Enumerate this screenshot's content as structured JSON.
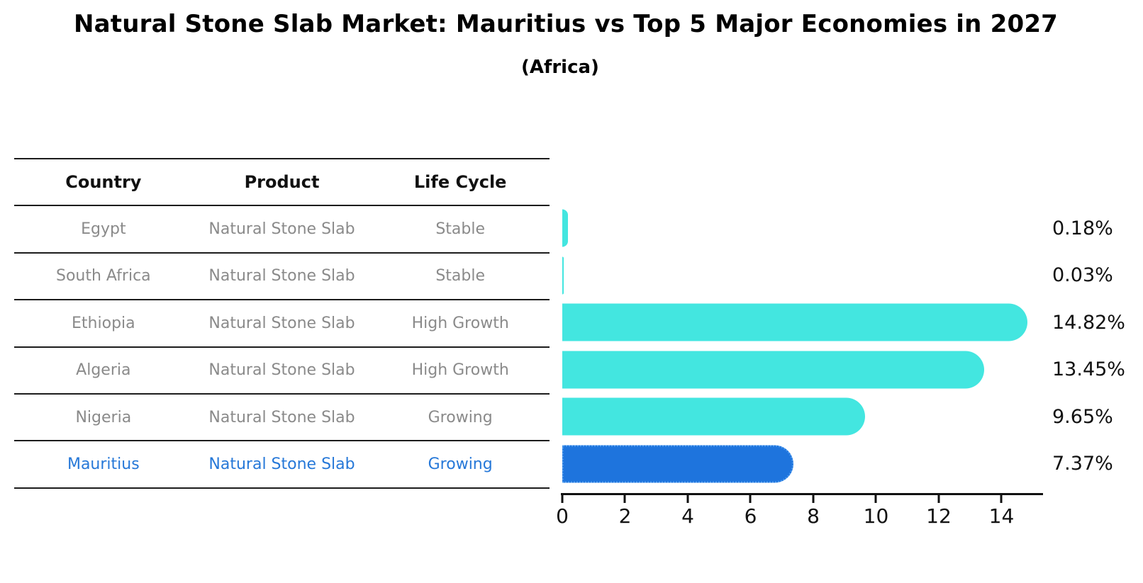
{
  "title": "Natural Stone Slab Market: Mauritius vs Top 5 Major Economies in 2027",
  "subtitle": "(Africa)",
  "table": {
    "headers": [
      "Country",
      "Product",
      "Life Cycle"
    ],
    "rows": [
      {
        "country": "Egypt",
        "product": "Natural Stone Slab",
        "life_cycle": "Stable",
        "highlighted": false
      },
      {
        "country": "South Africa",
        "product": "Natural Stone Slab",
        "life_cycle": "Stable",
        "highlighted": false
      },
      {
        "country": "Ethiopia",
        "product": "Natural Stone Slab",
        "life_cycle": "High Growth",
        "highlighted": false
      },
      {
        "country": "Algeria",
        "product": "Natural Stone Slab",
        "life_cycle": "High Growth",
        "highlighted": false
      },
      {
        "country": "Nigeria",
        "product": "Natural Stone Slab",
        "life_cycle": "Growing",
        "highlighted": false
      },
      {
        "country": "Mauritius",
        "product": "Natural Stone Slab",
        "life_cycle": "Growing",
        "highlighted": true
      }
    ]
  },
  "chart_data": {
    "type": "bar",
    "orientation": "horizontal",
    "title": "Natural Stone Slab Market: Mauritius vs Top 5 Major Economies in 2027 (Africa)",
    "categories": [
      "Egypt",
      "South Africa",
      "Ethiopia",
      "Algeria",
      "Nigeria",
      "Mauritius"
    ],
    "values": [
      0.18,
      0.03,
      14.82,
      13.45,
      9.65,
      7.37
    ],
    "value_labels": [
      "0.18%",
      "0.03%",
      "14.82%",
      "13.45%",
      "9.65%",
      "7.37%"
    ],
    "highlight_category": "Mauritius",
    "xticks": [
      0,
      2,
      4,
      6,
      8,
      10,
      12,
      14
    ],
    "xlim": [
      0,
      15.3
    ],
    "grid": false,
    "legend": "none",
    "colors": {
      "bar": "#43e6e0",
      "highlight_bar": "#1e74dd",
      "highlight_bar_edge": "#4f9cf0",
      "highlight_text": "#2678d8",
      "cell_text": "#8a8a8a",
      "header_text": "#111111",
      "axis": "#111111"
    }
  }
}
